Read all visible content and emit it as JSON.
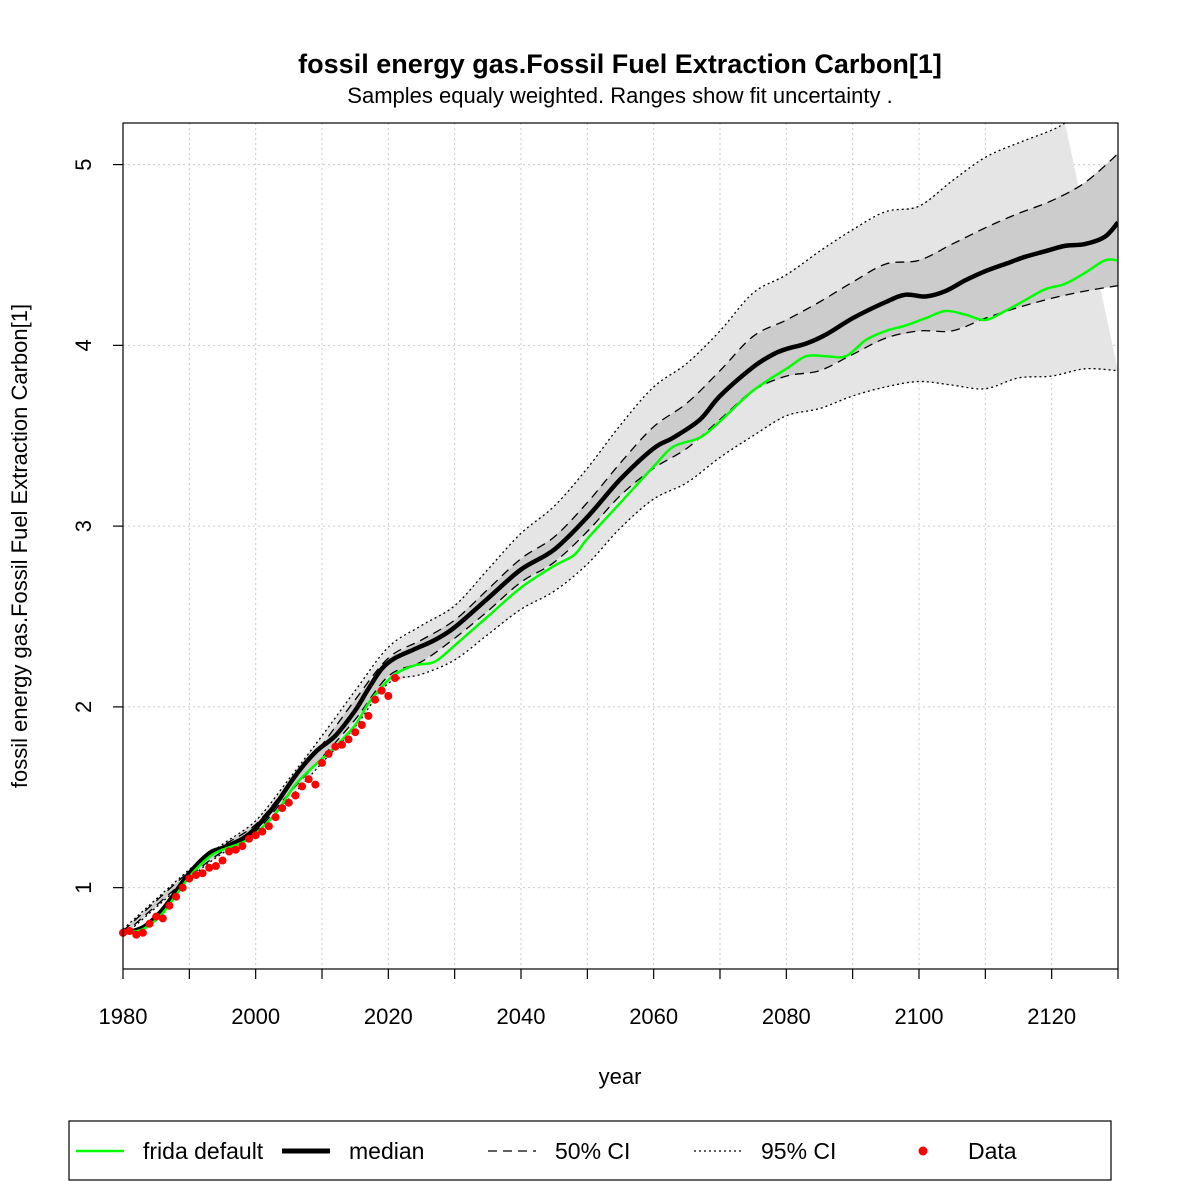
{
  "chart_data": {
    "type": "line",
    "title": "fossil energy gas.Fossil Fuel Extraction Carbon[1]",
    "subtitle": "Samples equaly weighted. Ranges show  fit uncertainty .",
    "xlabel": "year",
    "ylabel": "fossil energy gas.Fossil Fuel Extraction Carbon[1]",
    "xlim": [
      1980,
      2130
    ],
    "ylim": [
      0.55,
      5.23
    ],
    "x_ticks": [
      1980,
      2000,
      2020,
      2040,
      2060,
      2080,
      2100,
      2120
    ],
    "x_minor_ticks": [
      1990,
      2010,
      2030,
      2050,
      2070,
      2090,
      2110,
      2130
    ],
    "y_ticks": [
      1,
      2,
      3,
      4,
      5
    ],
    "grid": true,
    "legend_position": "bottom",
    "series": [
      {
        "name": "frida default",
        "color": "#00ff00",
        "style": "solid",
        "x": [
          1980,
          1983,
          1986,
          1990,
          1993,
          1995,
          1998,
          2000,
          2003,
          2006,
          2009,
          2012,
          2015,
          2017,
          2019,
          2021,
          2024,
          2027,
          2030,
          2035,
          2040,
          2045,
          2048,
          2050,
          2055,
          2060,
          2063,
          2067,
          2070,
          2075,
          2080,
          2083,
          2086,
          2089,
          2092,
          2095,
          2098,
          2101,
          2104,
          2107,
          2110,
          2113,
          2116,
          2119,
          2122,
          2125,
          2128,
          2130
        ],
        "values": [
          0.75,
          0.77,
          0.86,
          1.06,
          1.17,
          1.21,
          1.25,
          1.3,
          1.41,
          1.57,
          1.68,
          1.78,
          1.9,
          2.02,
          2.11,
          2.18,
          2.23,
          2.25,
          2.34,
          2.5,
          2.66,
          2.78,
          2.84,
          2.93,
          3.13,
          3.33,
          3.44,
          3.49,
          3.58,
          3.75,
          3.87,
          3.94,
          3.94,
          3.94,
          4.03,
          4.08,
          4.11,
          4.15,
          4.19,
          4.17,
          4.14,
          4.19,
          4.25,
          4.31,
          4.34,
          4.4,
          4.47,
          4.47
        ]
      },
      {
        "name": "median",
        "color": "#000000",
        "style": "solid",
        "x": [
          1980,
          1983,
          1986,
          1990,
          1993,
          1995,
          1998,
          2000,
          2003,
          2006,
          2009,
          2012,
          2015,
          2017,
          2019,
          2021,
          2024,
          2027,
          2030,
          2035,
          2040,
          2045,
          2050,
          2055,
          2060,
          2063,
          2067,
          2070,
          2075,
          2078,
          2080,
          2083,
          2086,
          2090,
          2095,
          2098,
          2101,
          2104,
          2107,
          2110,
          2113,
          2116,
          2119,
          2122,
          2125,
          2128,
          2130
        ],
        "values": [
          0.75,
          0.78,
          0.88,
          1.08,
          1.19,
          1.22,
          1.27,
          1.33,
          1.46,
          1.62,
          1.75,
          1.84,
          1.98,
          2.1,
          2.21,
          2.27,
          2.32,
          2.37,
          2.44,
          2.6,
          2.76,
          2.87,
          3.05,
          3.26,
          3.43,
          3.49,
          3.59,
          3.72,
          3.88,
          3.95,
          3.98,
          4.01,
          4.06,
          4.15,
          4.24,
          4.28,
          4.27,
          4.3,
          4.36,
          4.41,
          4.45,
          4.49,
          4.52,
          4.55,
          4.56,
          4.6,
          4.68
        ]
      },
      {
        "name": "50% CI upper",
        "color": "#000000",
        "style": "dashed",
        "x": [
          1980,
          1990,
          1995,
          2000,
          2005,
          2010,
          2015,
          2020,
          2025,
          2030,
          2035,
          2040,
          2045,
          2050,
          2055,
          2060,
          2065,
          2070,
          2075,
          2080,
          2085,
          2090,
          2095,
          2100,
          2105,
          2110,
          2115,
          2120,
          2125,
          2130
        ],
        "values": [
          0.76,
          1.09,
          1.23,
          1.35,
          1.57,
          1.79,
          2.04,
          2.27,
          2.37,
          2.48,
          2.65,
          2.82,
          2.94,
          3.13,
          3.35,
          3.55,
          3.68,
          3.86,
          4.05,
          4.14,
          4.24,
          4.35,
          4.45,
          4.47,
          4.56,
          4.65,
          4.73,
          4.8,
          4.9,
          5.06
        ]
      },
      {
        "name": "50% CI lower",
        "color": "#000000",
        "style": "dashed",
        "x": [
          1980,
          1990,
          1995,
          2000,
          2005,
          2010,
          2015,
          2020,
          2025,
          2030,
          2035,
          2040,
          2045,
          2050,
          2055,
          2060,
          2065,
          2070,
          2075,
          2080,
          2085,
          2090,
          2095,
          2100,
          2105,
          2110,
          2115,
          2120,
          2125,
          2130
        ],
        "values": [
          0.74,
          1.06,
          1.2,
          1.31,
          1.52,
          1.72,
          1.93,
          2.17,
          2.25,
          2.38,
          2.53,
          2.69,
          2.8,
          2.97,
          3.17,
          3.32,
          3.43,
          3.59,
          3.75,
          3.83,
          3.86,
          3.95,
          4.04,
          4.08,
          4.08,
          4.15,
          4.21,
          4.26,
          4.3,
          4.33
        ]
      },
      {
        "name": "95% CI upper",
        "color": "#000000",
        "style": "dotted",
        "x": [
          1980,
          1990,
          1995,
          2000,
          2005,
          2010,
          2015,
          2020,
          2025,
          2030,
          2035,
          2040,
          2045,
          2050,
          2055,
          2060,
          2065,
          2070,
          2075,
          2080,
          2085,
          2090,
          2095,
          2100,
          2105,
          2110,
          2115,
          2120,
          2122
        ],
        "values": [
          0.77,
          1.1,
          1.24,
          1.37,
          1.6,
          1.84,
          2.09,
          2.33,
          2.45,
          2.56,
          2.76,
          2.96,
          3.11,
          3.32,
          3.56,
          3.77,
          3.9,
          4.08,
          4.29,
          4.39,
          4.52,
          4.64,
          4.74,
          4.77,
          4.91,
          5.04,
          5.12,
          5.19,
          5.23
        ]
      },
      {
        "name": "95% CI lower",
        "color": "#000000",
        "style": "dotted",
        "x": [
          1980,
          1990,
          1995,
          2000,
          2005,
          2010,
          2015,
          2020,
          2025,
          2030,
          2035,
          2040,
          2045,
          2050,
          2055,
          2060,
          2065,
          2070,
          2075,
          2080,
          2085,
          2090,
          2095,
          2100,
          2105,
          2110,
          2115,
          2120,
          2125,
          2130
        ],
        "values": [
          0.73,
          1.05,
          1.19,
          1.3,
          1.49,
          1.69,
          1.89,
          2.13,
          2.18,
          2.26,
          2.4,
          2.54,
          2.64,
          2.79,
          2.99,
          3.15,
          3.24,
          3.38,
          3.5,
          3.61,
          3.65,
          3.72,
          3.77,
          3.8,
          3.78,
          3.76,
          3.82,
          3.83,
          3.87,
          3.86
        ]
      },
      {
        "name": "Data",
        "color": "#ff0000",
        "style": "points",
        "x": [
          1980,
          1981,
          1982,
          1983,
          1984,
          1985,
          1986,
          1987,
          1988,
          1989,
          1990,
          1991,
          1992,
          1993,
          1994,
          1995,
          1996,
          1997,
          1998,
          1999,
          2000,
          2001,
          2002,
          2003,
          2004,
          2005,
          2006,
          2007,
          2008,
          2009,
          2010,
          2011,
          2012,
          2013,
          2014,
          2015,
          2016,
          2017,
          2018,
          2019,
          2020,
          2021
        ],
        "values": [
          0.75,
          0.76,
          0.74,
          0.75,
          0.8,
          0.84,
          0.83,
          0.9,
          0.95,
          1.0,
          1.05,
          1.07,
          1.08,
          1.11,
          1.12,
          1.15,
          1.2,
          1.21,
          1.23,
          1.27,
          1.29,
          1.31,
          1.34,
          1.39,
          1.44,
          1.47,
          1.51,
          1.56,
          1.6,
          1.57,
          1.69,
          1.74,
          1.78,
          1.79,
          1.82,
          1.86,
          1.9,
          1.95,
          2.04,
          2.09,
          2.06,
          2.16
        ]
      }
    ],
    "bands": [
      {
        "name": "95% CI band",
        "color": "#e5e5e5",
        "upper": "95% CI upper",
        "lower": "95% CI lower"
      },
      {
        "name": "50% CI band",
        "color": "#cccccc",
        "upper": "50% CI upper",
        "lower": "50% CI lower"
      }
    ]
  },
  "legend": {
    "items": [
      {
        "label": "frida default",
        "color": "#00ff00",
        "style": "solid"
      },
      {
        "label": "median",
        "color": "#000000",
        "style": "thick"
      },
      {
        "label": "50% CI",
        "color": "#000000",
        "style": "dashed"
      },
      {
        "label": "95% CI",
        "color": "#000000",
        "style": "dotted"
      },
      {
        "label": "Data",
        "color": "#ff0000",
        "style": "point"
      }
    ]
  }
}
